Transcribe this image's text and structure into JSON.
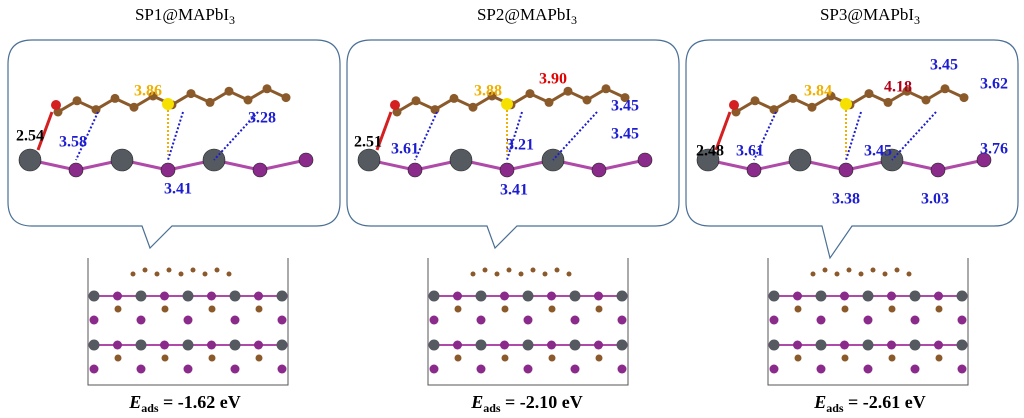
{
  "panels": [
    {
      "title": "SP1@MAPbI",
      "title_sub": "3",
      "labels": [
        {
          "text": "2.54",
          "color": "#000000"
        },
        {
          "text": "3.58",
          "color": "#1c1cd0"
        },
        {
          "text": "3.86",
          "color": "#f0b000"
        },
        {
          "text": "3.41",
          "color": "#1c1cd0"
        },
        {
          "text": "3.28",
          "color": "#1c1cd0"
        }
      ],
      "energy": {
        "symbol": "E",
        "sub": "ads",
        "value": " = -1.62 eV"
      }
    },
    {
      "title": "SP2@MAPbI",
      "title_sub": "3",
      "labels": [
        {
          "text": "2.51",
          "color": "#000000"
        },
        {
          "text": "3.61",
          "color": "#1c1cd0"
        },
        {
          "text": "3.88",
          "color": "#f0b000"
        },
        {
          "text": "3.90",
          "color": "#e00000"
        },
        {
          "text": "3.45",
          "color": "#1c1cd0"
        },
        {
          "text": "3.21",
          "color": "#1c1cd0"
        },
        {
          "text": "3.45",
          "color": "#1c1cd0"
        },
        {
          "text": "3.41",
          "color": "#1c1cd0"
        }
      ],
      "energy": {
        "symbol": "E",
        "sub": "ads",
        "value": " = -2.10 eV"
      }
    },
    {
      "title": "SP3@MAPbI",
      "title_sub": "3",
      "labels": [
        {
          "text": "2.48",
          "color": "#000000"
        },
        {
          "text": "3.61",
          "color": "#1c1cd0"
        },
        {
          "text": "3.84",
          "color": "#f0b000"
        },
        {
          "text": "4.18",
          "color": "#b0001a"
        },
        {
          "text": "3.45",
          "color": "#1c1cd0"
        },
        {
          "text": "3.62",
          "color": "#1c1cd0"
        },
        {
          "text": "3.45",
          "color": "#1c1cd0"
        },
        {
          "text": "3.76",
          "color": "#1c1cd0"
        },
        {
          "text": "3.38",
          "color": "#1c1cd0"
        },
        {
          "text": "3.03",
          "color": "#1c1cd0"
        }
      ],
      "energy": {
        "symbol": "E",
        "sub": "ads",
        "value": " = -2.61 eV"
      }
    }
  ]
}
